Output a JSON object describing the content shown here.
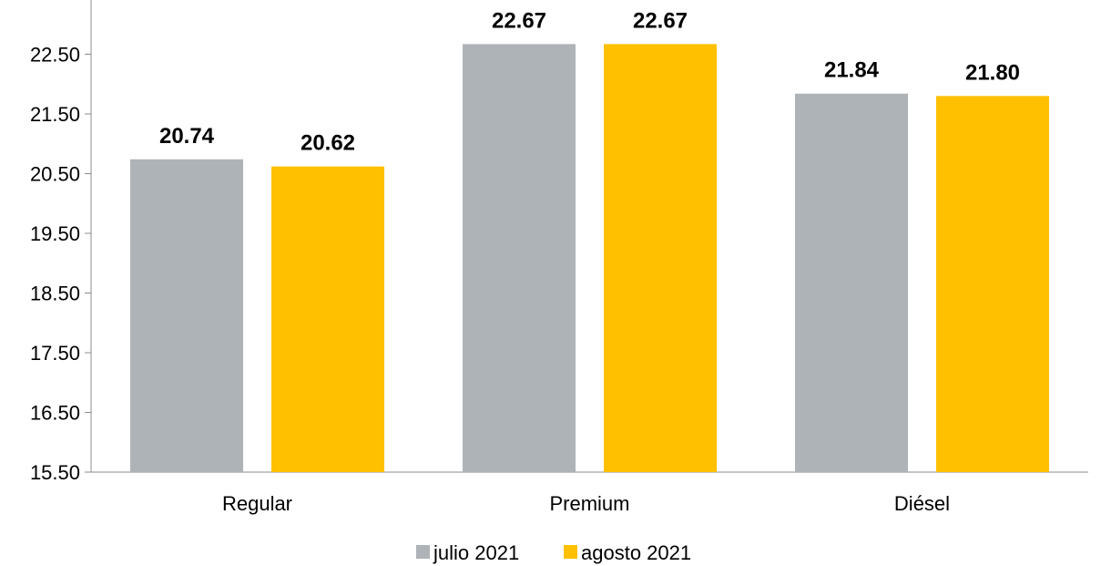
{
  "chart_data": {
    "type": "bar",
    "categories": [
      "Regular",
      "Premium",
      "Diésel"
    ],
    "series": [
      {
        "name": "julio 2021",
        "color": "#aeb3b8",
        "values": [
          20.74,
          22.67,
          21.84
        ],
        "labels": [
          "20.74",
          "22.67",
          "21.84"
        ]
      },
      {
        "name": "agosto 2021",
        "color": "#ffc000",
        "values": [
          20.62,
          22.67,
          21.8
        ],
        "labels": [
          "20.62",
          "22.67",
          "21.80"
        ]
      }
    ],
    "yticks": [
      "15.50",
      "16.50",
      "17.50",
      "18.50",
      "19.50",
      "20.50",
      "21.50",
      "22.50"
    ],
    "ylim": [
      15.5,
      23.5
    ],
    "grid": false,
    "legend_position": "bottom"
  }
}
